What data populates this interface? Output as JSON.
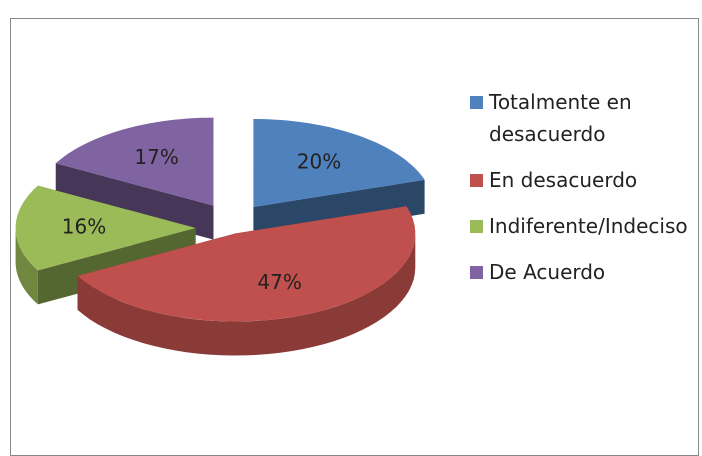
{
  "chart_data": {
    "type": "pie",
    "categories": [
      "Totalmente en desacuerdo",
      "En desacuerdo",
      "Indiferente/Indeciso",
      "De Acuerdo"
    ],
    "values": [
      20,
      47,
      16,
      17
    ],
    "value_labels": [
      "20%",
      "47%",
      "16%",
      "17%"
    ],
    "colors": [
      "#4f81bd",
      "#c0504d",
      "#9bbb59",
      "#8064a2"
    ],
    "legend": "right"
  }
}
